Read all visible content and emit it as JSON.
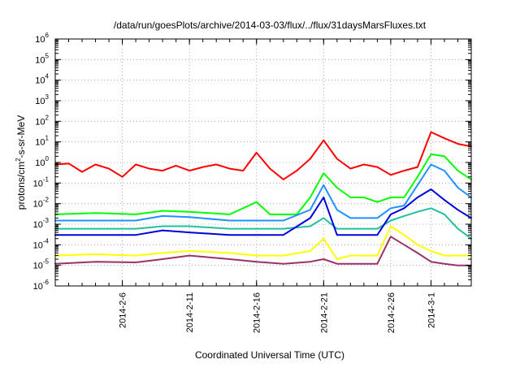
{
  "chart_data": {
    "type": "line",
    "title": "/data/run/goesPlots/archive/2014-03-03/flux/../flux/31daysMarsFluxes.txt",
    "xlabel": "Coordinated Universal Time (UTC)",
    "ylabel_parts": [
      "protons/cm",
      "2",
      "-s-sr-MeV"
    ],
    "yscale": "log",
    "ylim": [
      1e-06,
      1000000.0
    ],
    "y_tick_exponents": [
      "-6",
      "-5",
      "-4",
      "-3",
      "-2",
      "-1",
      "0",
      "1",
      "2",
      "3",
      "4",
      "5",
      "6"
    ],
    "x_range": [
      "2014-02-01",
      "2014-03-04"
    ],
    "x_ticks": [
      {
        "label": "2014-2-6",
        "date": "2014-02-06"
      },
      {
        "label": "2014-2-11",
        "date": "2014-02-11"
      },
      {
        "label": "2014-2-16",
        "date": "2014-02-16"
      },
      {
        "label": "2014-2-21",
        "date": "2014-02-21"
      },
      {
        "label": "2014-2-26",
        "date": "2014-02-26"
      },
      {
        "label": "2014-3-1",
        "date": "2014-03-01"
      }
    ],
    "grid": true,
    "series": [
      {
        "color": "#ff0000",
        "points": [
          [
            "2014-02-01",
            0.8
          ],
          [
            "2014-02-02",
            0.9
          ],
          [
            "2014-02-03",
            0.35
          ],
          [
            "2014-02-04",
            0.8
          ],
          [
            "2014-02-05",
            0.5
          ],
          [
            "2014-02-06",
            0.2
          ],
          [
            "2014-02-07",
            0.8
          ],
          [
            "2014-02-08",
            0.5
          ],
          [
            "2014-02-09",
            0.4
          ],
          [
            "2014-02-10",
            0.7
          ],
          [
            "2014-02-11",
            0.4
          ],
          [
            "2014-02-12",
            0.6
          ],
          [
            "2014-02-13",
            0.8
          ],
          [
            "2014-02-14",
            0.5
          ],
          [
            "2014-02-15",
            0.4
          ],
          [
            "2014-02-16",
            3.0
          ],
          [
            "2014-02-17",
            0.5
          ],
          [
            "2014-02-18",
            0.15
          ],
          [
            "2014-02-19",
            0.4
          ],
          [
            "2014-02-20",
            1.5
          ],
          [
            "2014-02-21",
            12
          ],
          [
            "2014-02-22",
            1.5
          ],
          [
            "2014-02-23",
            0.5
          ],
          [
            "2014-02-24",
            0.8
          ],
          [
            "2014-02-25",
            0.6
          ],
          [
            "2014-02-26",
            0.25
          ],
          [
            "2014-02-27",
            0.4
          ],
          [
            "2014-02-28",
            0.6
          ],
          [
            "2014-03-01",
            30
          ],
          [
            "2014-03-02",
            15
          ],
          [
            "2014-03-03",
            8
          ],
          [
            "2014-03-04",
            6
          ]
        ]
      },
      {
        "color": "#00ff00",
        "points": [
          [
            "2014-02-01",
            0.003
          ],
          [
            "2014-02-04",
            0.0035
          ],
          [
            "2014-02-07",
            0.003
          ],
          [
            "2014-02-09",
            0.0045
          ],
          [
            "2014-02-11",
            0.004
          ],
          [
            "2014-02-14",
            0.003
          ],
          [
            "2014-02-16",
            0.012
          ],
          [
            "2014-02-17",
            0.003
          ],
          [
            "2014-02-19",
            0.003
          ],
          [
            "2014-02-20",
            0.02
          ],
          [
            "2014-02-21",
            0.3
          ],
          [
            "2014-02-22",
            0.06
          ],
          [
            "2014-02-23",
            0.02
          ],
          [
            "2014-02-24",
            0.02
          ],
          [
            "2014-02-25",
            0.012
          ],
          [
            "2014-02-26",
            0.02
          ],
          [
            "2014-02-27",
            0.02
          ],
          [
            "2014-02-28",
            0.2
          ],
          [
            "2014-03-01",
            2.5
          ],
          [
            "2014-03-02",
            2.0
          ],
          [
            "2014-03-03",
            0.4
          ],
          [
            "2014-03-04",
            0.15
          ]
        ]
      },
      {
        "color": "#1e90ff",
        "points": [
          [
            "2014-02-01",
            0.0015
          ],
          [
            "2014-02-04",
            0.0015
          ],
          [
            "2014-02-07",
            0.0015
          ],
          [
            "2014-02-09",
            0.0025
          ],
          [
            "2014-02-11",
            0.0022
          ],
          [
            "2014-02-14",
            0.0015
          ],
          [
            "2014-02-16",
            0.0015
          ],
          [
            "2014-02-18",
            0.0015
          ],
          [
            "2014-02-20",
            0.005
          ],
          [
            "2014-02-21",
            0.08
          ],
          [
            "2014-02-22",
            0.005
          ],
          [
            "2014-02-23",
            0.002
          ],
          [
            "2014-02-25",
            0.002
          ],
          [
            "2014-02-26",
            0.006
          ],
          [
            "2014-02-27",
            0.008
          ],
          [
            "2014-02-28",
            0.08
          ],
          [
            "2014-03-01",
            0.8
          ],
          [
            "2014-03-02",
            0.4
          ],
          [
            "2014-03-03",
            0.06
          ],
          [
            "2014-03-04",
            0.02
          ]
        ]
      },
      {
        "color": "#20c0a0",
        "points": [
          [
            "2014-02-01",
            0.0006
          ],
          [
            "2014-02-04",
            0.0006
          ],
          [
            "2014-02-07",
            0.0006
          ],
          [
            "2014-02-09",
            0.0008
          ],
          [
            "2014-02-11",
            0.0008
          ],
          [
            "2014-02-14",
            0.0006
          ],
          [
            "2014-02-16",
            0.0006
          ],
          [
            "2014-02-18",
            0.0006
          ],
          [
            "2014-02-20",
            0.0008
          ],
          [
            "2014-02-21",
            0.002
          ],
          [
            "2014-02-22",
            0.0006
          ],
          [
            "2014-02-23",
            0.0006
          ],
          [
            "2014-02-25",
            0.0006
          ],
          [
            "2014-02-26",
            0.0015
          ],
          [
            "2014-02-27",
            0.0025
          ],
          [
            "2014-02-28",
            0.004
          ],
          [
            "2014-03-01",
            0.006
          ],
          [
            "2014-03-02",
            0.003
          ],
          [
            "2014-03-03",
            0.0006
          ],
          [
            "2014-03-04",
            0.0002
          ]
        ]
      },
      {
        "color": "#0000dd",
        "points": [
          [
            "2014-02-01",
            0.0003
          ],
          [
            "2014-02-04",
            0.0003
          ],
          [
            "2014-02-07",
            0.0003
          ],
          [
            "2014-02-09",
            0.0005
          ],
          [
            "2014-02-11",
            0.0004
          ],
          [
            "2014-02-14",
            0.0003
          ],
          [
            "2014-02-16",
            0.0003
          ],
          [
            "2014-02-18",
            0.0003
          ],
          [
            "2014-02-20",
            0.002
          ],
          [
            "2014-02-21",
            0.02
          ],
          [
            "2014-02-22",
            0.0003
          ],
          [
            "2014-02-23",
            0.0003
          ],
          [
            "2014-02-25",
            0.0003
          ],
          [
            "2014-02-26",
            0.003
          ],
          [
            "2014-02-27",
            0.006
          ],
          [
            "2014-02-28",
            0.02
          ],
          [
            "2014-03-01",
            0.05
          ],
          [
            "2014-03-02",
            0.015
          ],
          [
            "2014-03-03",
            0.005
          ],
          [
            "2014-03-04",
            0.002
          ]
        ]
      },
      {
        "color": "#ffff00",
        "points": [
          [
            "2014-02-01",
            3e-05
          ],
          [
            "2014-02-04",
            3.5e-05
          ],
          [
            "2014-02-07",
            3e-05
          ],
          [
            "2014-02-09",
            4e-05
          ],
          [
            "2014-02-11",
            5e-05
          ],
          [
            "2014-02-14",
            4e-05
          ],
          [
            "2014-02-16",
            3e-05
          ],
          [
            "2014-02-18",
            3e-05
          ],
          [
            "2014-02-20",
            5e-05
          ],
          [
            "2014-02-21",
            0.0002
          ],
          [
            "2014-02-22",
            2e-05
          ],
          [
            "2014-02-23",
            3e-05
          ],
          [
            "2014-02-25",
            3e-05
          ],
          [
            "2014-02-26",
            0.0008
          ],
          [
            "2014-02-27",
            0.0003
          ],
          [
            "2014-02-28",
            0.0001
          ],
          [
            "2014-03-01",
            5e-05
          ],
          [
            "2014-03-02",
            3e-05
          ],
          [
            "2014-03-03",
            3e-05
          ],
          [
            "2014-03-04",
            3e-05
          ]
        ]
      },
      {
        "color": "#993366",
        "points": [
          [
            "2014-02-01",
            1.2e-05
          ],
          [
            "2014-02-04",
            1.5e-05
          ],
          [
            "2014-02-07",
            1.4e-05
          ],
          [
            "2014-02-09",
            2e-05
          ],
          [
            "2014-02-11",
            3e-05
          ],
          [
            "2014-02-14",
            2e-05
          ],
          [
            "2014-02-16",
            1.5e-05
          ],
          [
            "2014-02-18",
            1.2e-05
          ],
          [
            "2014-02-20",
            1.5e-05
          ],
          [
            "2014-02-21",
            2e-05
          ],
          [
            "2014-02-22",
            1.2e-05
          ],
          [
            "2014-02-23",
            1.2e-05
          ],
          [
            "2014-02-25",
            1.2e-05
          ],
          [
            "2014-02-26",
            0.00025
          ],
          [
            "2014-02-27",
            0.0001
          ],
          [
            "2014-02-28",
            4e-05
          ],
          [
            "2014-03-01",
            1.5e-05
          ],
          [
            "2014-03-02",
            1.2e-05
          ],
          [
            "2014-03-03",
            1e-05
          ],
          [
            "2014-03-04",
            1e-05
          ]
        ]
      }
    ]
  }
}
